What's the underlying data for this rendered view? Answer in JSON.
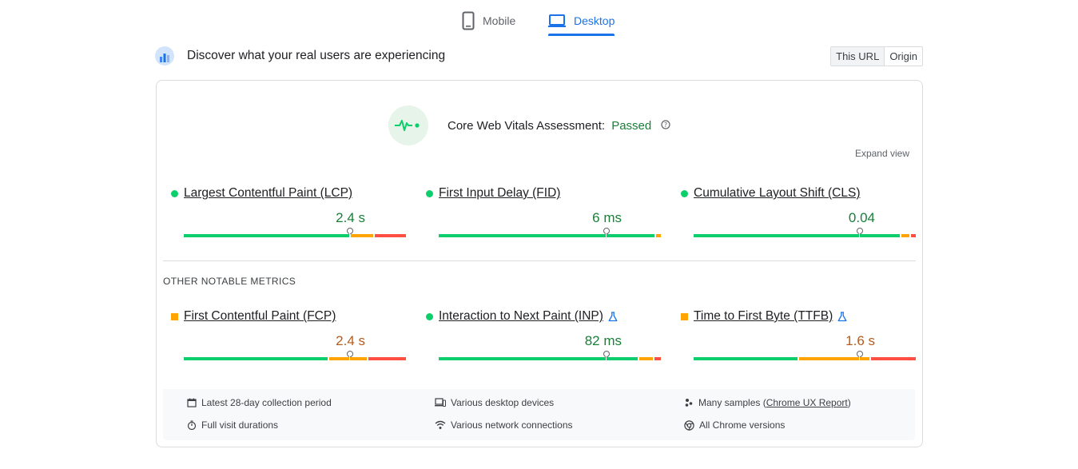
{
  "tabs": [
    {
      "label": "Mobile",
      "icon": "smartphone-icon",
      "active": false
    },
    {
      "label": "Desktop",
      "icon": "laptop-icon",
      "active": true
    }
  ],
  "header": {
    "title": "Discover what your real users are experiencing",
    "toggle": [
      "This URL",
      "Origin"
    ],
    "toggle_selected": "This URL"
  },
  "assessment": {
    "label": "Core Web Vitals Assessment:",
    "status": "Passed",
    "status_color": "#188038",
    "expand_label": "Expand view"
  },
  "core_metrics": [
    {
      "name": "Largest Contentful Paint (LCP)",
      "value": "2.4 s",
      "rating": "good",
      "distribution": {
        "good": 0.75,
        "needs_improvement": 0.1,
        "poor": 0.14
      },
      "marker_fraction": 0.745
    },
    {
      "name": "First Input Delay (FID)",
      "value": "6 ms",
      "rating": "good",
      "distribution": {
        "good": 0.97,
        "needs_improvement": 0.02,
        "poor": 0.0
      },
      "marker_fraction": 0.75
    },
    {
      "name": "Cumulative Layout Shift (CLS)",
      "value": "0.04",
      "rating": "good",
      "distribution": {
        "good": 0.94,
        "needs_improvement": 0.035,
        "poor": 0.02
      },
      "marker_fraction": 0.745
    }
  ],
  "other_label": "OTHER NOTABLE METRICS",
  "other_metrics": [
    {
      "name": "First Contentful Paint (FCP)",
      "value": "2.4 s",
      "rating": "average",
      "experimental": false,
      "distribution": {
        "good": 0.65,
        "needs_improvement": 0.17,
        "poor": 0.17
      },
      "marker_fraction": 0.745
    },
    {
      "name": "Interaction to Next Paint (INP)",
      "value": "82 ms",
      "rating": "good",
      "experimental": true,
      "distribution": {
        "good": 0.9,
        "needs_improvement": 0.06,
        "poor": 0.03
      },
      "marker_fraction": 0.75
    },
    {
      "name": "Time to First Byte (TTFB)",
      "value": "1.6 s",
      "rating": "average",
      "experimental": true,
      "distribution": {
        "good": 0.47,
        "needs_improvement": 0.32,
        "poor": 0.2
      },
      "marker_fraction": 0.745
    }
  ],
  "footer": {
    "collection_period": "Latest 28-day collection period",
    "devices": "Various desktop devices",
    "samples_prefix": "Many samples (",
    "samples_link": "Chrome UX Report",
    "samples_suffix": ")",
    "durations": "Full visit durations",
    "network": "Various network connections",
    "chrome_versions": "All Chrome versions"
  },
  "colors": {
    "accent": "#1a73e8",
    "good": "#0cce6b",
    "needs_improvement": "#ffa400",
    "poor": "#ff4e42"
  }
}
